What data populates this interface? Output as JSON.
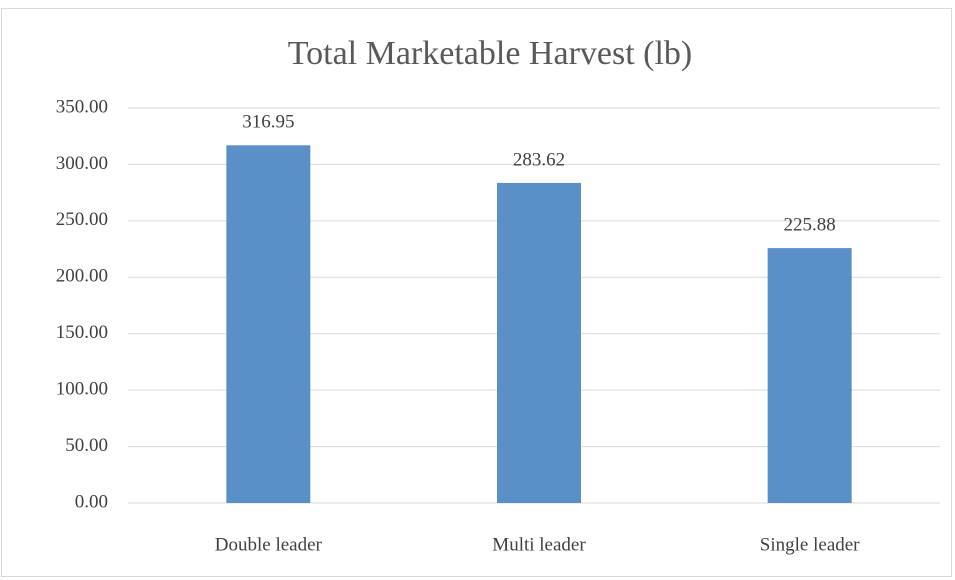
{
  "chart_data": {
    "type": "bar",
    "title": "Total Marketable Harvest (lb)",
    "categories": [
      "Double leader",
      "Multi leader",
      "Single leader"
    ],
    "values": [
      316.95,
      283.62,
      225.88
    ],
    "color": "#5b8fc7",
    "ylim": [
      0,
      350
    ],
    "yticks": [
      {
        "value": 0,
        "label": "0.00"
      },
      {
        "value": 50,
        "label": "50.00"
      },
      {
        "value": 100,
        "label": "100.00"
      },
      {
        "value": 150,
        "label": "150.00"
      },
      {
        "value": 200,
        "label": "200.00"
      },
      {
        "value": 250,
        "label": "250.00"
      },
      {
        "value": 300,
        "label": "300.00"
      },
      {
        "value": 350,
        "label": "350.00"
      }
    ],
    "grid": true
  }
}
